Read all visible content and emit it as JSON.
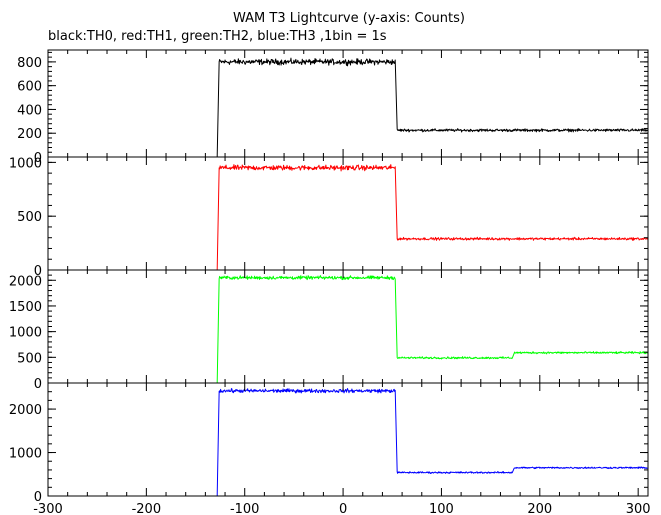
{
  "chart_data": {
    "type": "line",
    "title": "WAM T3 Lightcurve (y-axis: Counts)",
    "subtitle": "black:TH0, red:TH1, green:TH2, blue:TH3 ,1bin = 1s",
    "xlabel": "",
    "xlim": [
      -300,
      310
    ],
    "xticks": [
      -300,
      -200,
      -100,
      0,
      100,
      200,
      300
    ],
    "xtick_labels": [
      "-300",
      "-200",
      "-100",
      "0",
      "100",
      "200",
      "300"
    ],
    "grid": false,
    "panels": [
      {
        "name": "TH0",
        "color": "#000000",
        "ylim": [
          0,
          900
        ],
        "yticks": [
          0,
          200,
          400,
          600,
          800
        ],
        "ytick_labels": [
          "0",
          "200",
          "400",
          "600",
          "800"
        ],
        "segments": [
          {
            "x_start": -300,
            "x_end": -128,
            "level": 0,
            "noise": 0
          },
          {
            "x_start": -126,
            "x_end": 53,
            "level": 800,
            "noise": 25
          },
          {
            "x_start": 55,
            "x_end": 310,
            "level": 225,
            "noise": 12
          }
        ]
      },
      {
        "name": "TH1",
        "color": "#ff0000",
        "ylim": [
          0,
          1050
        ],
        "yticks": [
          0,
          500,
          1000
        ],
        "ytick_labels": [
          "0",
          "500",
          "1000"
        ],
        "segments": [
          {
            "x_start": -300,
            "x_end": -128,
            "level": 0,
            "noise": 0
          },
          {
            "x_start": -126,
            "x_end": 53,
            "level": 950,
            "noise": 25
          },
          {
            "x_start": 55,
            "x_end": 310,
            "level": 290,
            "noise": 12
          }
        ]
      },
      {
        "name": "TH2",
        "color": "#00ff00",
        "ylim": [
          0,
          2200
        ],
        "yticks": [
          0,
          500,
          1000,
          1500,
          2000
        ],
        "ytick_labels": [
          "0",
          "500",
          "1000",
          "1500",
          "2000"
        ],
        "segments": [
          {
            "x_start": -300,
            "x_end": -128,
            "level": 0,
            "noise": 0
          },
          {
            "x_start": -126,
            "x_end": 53,
            "level": 2050,
            "noise": 35
          },
          {
            "x_start": 55,
            "x_end": 172,
            "level": 490,
            "noise": 20
          },
          {
            "x_start": 174,
            "x_end": 310,
            "level": 590,
            "noise": 20
          }
        ]
      },
      {
        "name": "TH3",
        "color": "#0000ff",
        "ylim": [
          0,
          2600
        ],
        "yticks": [
          0,
          1000,
          2000
        ],
        "ytick_labels": [
          "0",
          "1000",
          "2000"
        ],
        "segments": [
          {
            "x_start": -300,
            "x_end": -128,
            "level": 0,
            "noise": 0
          },
          {
            "x_start": -126,
            "x_end": 53,
            "level": 2420,
            "noise": 45
          },
          {
            "x_start": 55,
            "x_end": 172,
            "level": 540,
            "noise": 20
          },
          {
            "x_start": 174,
            "x_end": 310,
            "level": 650,
            "noise": 20
          }
        ]
      }
    ]
  }
}
